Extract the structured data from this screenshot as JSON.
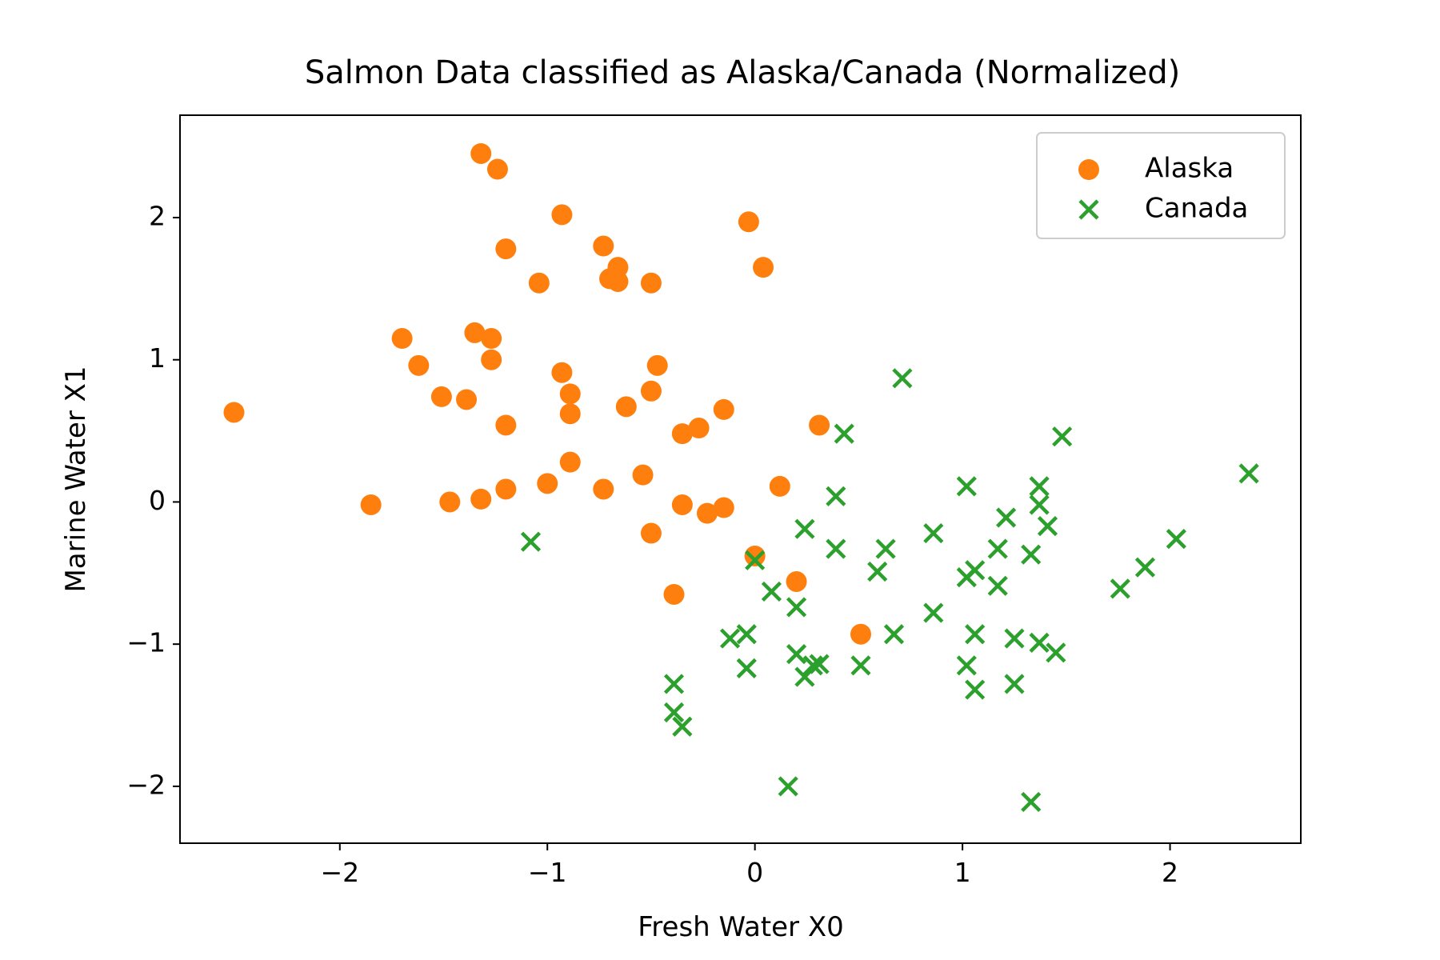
{
  "chart_data": {
    "type": "scatter",
    "title": "Salmon Data classified as Alaska/Canada (Normalized)",
    "xlabel": "Fresh Water X0",
    "ylabel": "Marine Water X1",
    "xlim": [
      -2.77,
      2.63
    ],
    "ylim": [
      -2.4,
      2.72
    ],
    "xticks": [
      -2,
      -1,
      0,
      1,
      2
    ],
    "yticks": [
      -2,
      -1,
      0,
      1,
      2
    ],
    "xtick_labels": [
      "−2",
      "−1",
      "0",
      "1",
      "2"
    ],
    "ytick_labels": [
      "−2",
      "−1",
      "0",
      "1",
      "2"
    ],
    "grid": false,
    "legend_position": "top-right",
    "series": [
      {
        "name": "Alaska",
        "marker": "circle",
        "color": "#ff7f0e",
        "points": [
          [
            -2.51,
            0.63
          ],
          [
            -1.85,
            -0.02
          ],
          [
            -1.7,
            1.15
          ],
          [
            -1.62,
            0.96
          ],
          [
            -1.51,
            0.74
          ],
          [
            -1.47,
            0.0
          ],
          [
            -1.39,
            0.72
          ],
          [
            -1.35,
            1.19
          ],
          [
            -1.32,
            2.45
          ],
          [
            -1.32,
            0.02
          ],
          [
            -1.27,
            1.15
          ],
          [
            -1.27,
            1.0
          ],
          [
            -1.24,
            2.34
          ],
          [
            -1.2,
            0.54
          ],
          [
            -1.2,
            1.78
          ],
          [
            -1.2,
            0.09
          ],
          [
            -1.04,
            1.54
          ],
          [
            -1.0,
            0.13
          ],
          [
            -0.93,
            2.02
          ],
          [
            -0.93,
            0.91
          ],
          [
            -0.89,
            0.76
          ],
          [
            -0.89,
            0.62
          ],
          [
            -0.89,
            0.28
          ],
          [
            -0.73,
            1.8
          ],
          [
            -0.73,
            0.09
          ],
          [
            -0.7,
            1.57
          ],
          [
            -0.66,
            1.65
          ],
          [
            -0.66,
            1.55
          ],
          [
            -0.62,
            0.67
          ],
          [
            -0.54,
            0.19
          ],
          [
            -0.5,
            1.54
          ],
          [
            -0.5,
            0.78
          ],
          [
            -0.5,
            -0.22
          ],
          [
            -0.47,
            0.96
          ],
          [
            -0.39,
            -0.65
          ],
          [
            -0.35,
            0.48
          ],
          [
            -0.35,
            -0.02
          ],
          [
            -0.27,
            0.52
          ],
          [
            -0.23,
            -0.08
          ],
          [
            -0.15,
            0.65
          ],
          [
            -0.15,
            -0.04
          ],
          [
            -0.03,
            1.97
          ],
          [
            0.0,
            -0.38
          ],
          [
            0.04,
            1.65
          ],
          [
            0.12,
            0.11
          ],
          [
            0.2,
            -0.56
          ],
          [
            0.31,
            0.54
          ],
          [
            0.51,
            -0.93
          ]
        ]
      },
      {
        "name": "Canada",
        "marker": "x",
        "color": "#2ca02c",
        "points": [
          [
            -1.08,
            -0.28
          ],
          [
            -0.39,
            -1.28
          ],
          [
            -0.39,
            -1.48
          ],
          [
            -0.35,
            -1.58
          ],
          [
            -0.12,
            -0.96
          ],
          [
            -0.04,
            -0.93
          ],
          [
            -0.04,
            -1.17
          ],
          [
            0.0,
            -0.41
          ],
          [
            0.08,
            -0.63
          ],
          [
            0.16,
            -2.0
          ],
          [
            0.2,
            -0.74
          ],
          [
            0.2,
            -1.07
          ],
          [
            0.24,
            -0.19
          ],
          [
            0.24,
            -1.23
          ],
          [
            0.28,
            -1.15
          ],
          [
            0.31,
            -1.14
          ],
          [
            0.39,
            0.04
          ],
          [
            0.39,
            -0.33
          ],
          [
            0.43,
            0.48
          ],
          [
            0.51,
            -1.15
          ],
          [
            0.59,
            -0.49
          ],
          [
            0.63,
            -0.33
          ],
          [
            0.67,
            -0.93
          ],
          [
            0.71,
            0.87
          ],
          [
            0.86,
            -0.22
          ],
          [
            0.86,
            -0.78
          ],
          [
            1.02,
            0.11
          ],
          [
            1.02,
            -0.53
          ],
          [
            1.02,
            -1.15
          ],
          [
            1.06,
            -0.48
          ],
          [
            1.06,
            -0.93
          ],
          [
            1.06,
            -1.32
          ],
          [
            1.17,
            -0.33
          ],
          [
            1.17,
            -0.59
          ],
          [
            1.21,
            -0.11
          ],
          [
            1.25,
            -0.96
          ],
          [
            1.25,
            -1.28
          ],
          [
            1.33,
            -0.37
          ],
          [
            1.33,
            -2.11
          ],
          [
            1.37,
            0.11
          ],
          [
            1.37,
            -0.02
          ],
          [
            1.37,
            -0.99
          ],
          [
            1.41,
            -0.17
          ],
          [
            1.45,
            -1.06
          ],
          [
            1.48,
            0.46
          ],
          [
            1.76,
            -0.61
          ],
          [
            1.88,
            -0.46
          ],
          [
            2.03,
            -0.26
          ],
          [
            2.38,
            0.2
          ]
        ]
      }
    ]
  }
}
